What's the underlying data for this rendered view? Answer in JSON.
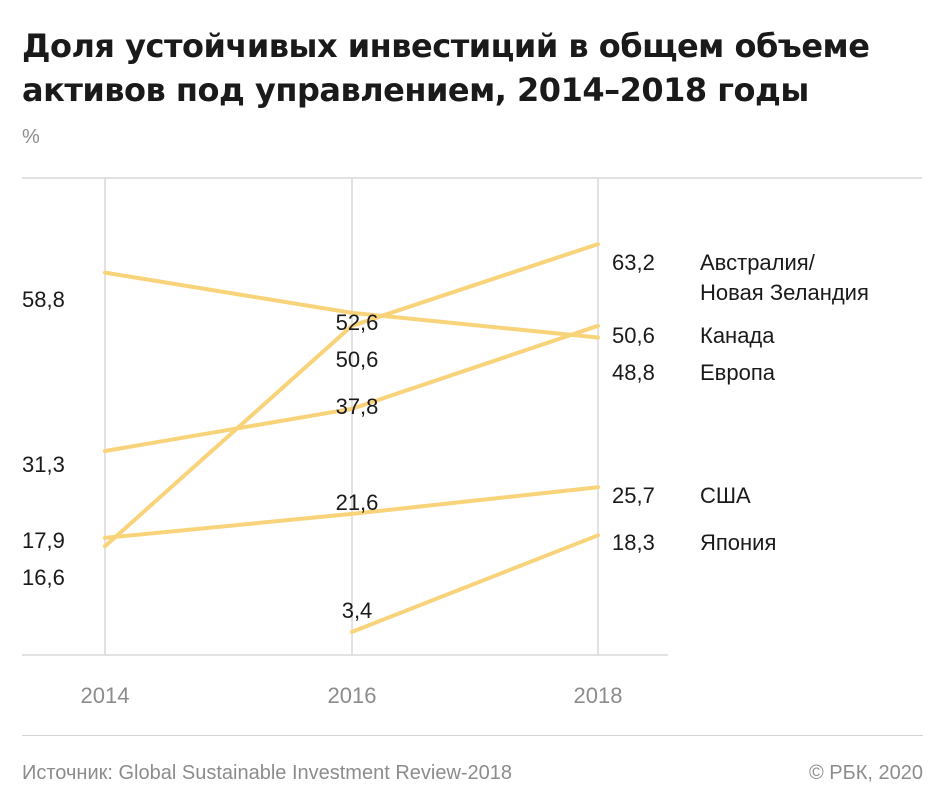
{
  "chart_data": {
    "type": "line",
    "title": "Доля устойчивых инвестиций в общем объеме активов под управлением, 2014–2018 годы",
    "unit": "%",
    "x": [
      "2014",
      "2016",
      "2018"
    ],
    "ylim": [
      0,
      70
    ],
    "grid": "vertical",
    "colors": {
      "line": "#f8d37a",
      "grid": "#d9d9d9"
    },
    "series": [
      {
        "name": "Австралия/\nНовая Зеландия",
        "values": [
          16.6,
          50.6,
          63.2
        ],
        "labels": [
          "16,6",
          "50,6",
          "63,2"
        ]
      },
      {
        "name": "Европа",
        "values": [
          58.8,
          52.6,
          48.8
        ],
        "labels": [
          "58,8",
          "52,6",
          "48,8"
        ]
      },
      {
        "name": "Канада",
        "values": [
          31.3,
          37.8,
          50.6
        ],
        "labels": [
          "31,3",
          "37,8",
          "50,6"
        ]
      },
      {
        "name": "США",
        "values": [
          17.9,
          21.6,
          25.7
        ],
        "labels": [
          "17,9",
          "21,6",
          "25,7"
        ]
      },
      {
        "name": "Япония",
        "values": [
          null,
          3.4,
          18.3
        ],
        "labels": [
          "",
          "3,4",
          "18,3"
        ]
      }
    ]
  },
  "footer": {
    "source": "Источник: Global Sustainable Investment Review-2018",
    "copyright": "© РБК, 2020"
  }
}
